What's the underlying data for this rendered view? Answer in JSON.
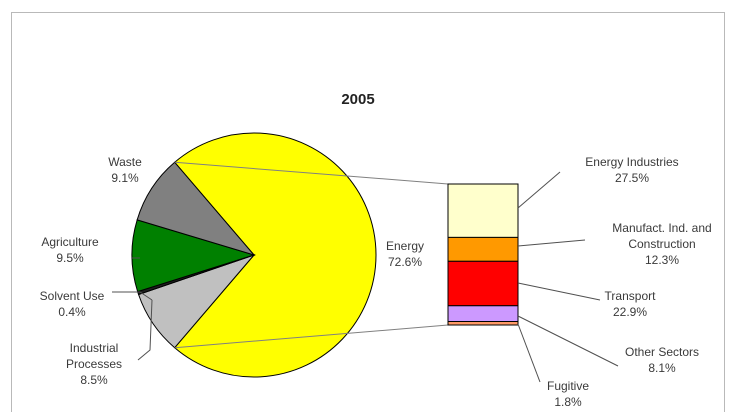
{
  "chart_data": {
    "type": "pie",
    "title": "2005",
    "pie": {
      "slices": [
        {
          "line1": "Energy",
          "line2": "72.6%",
          "value": 72.6,
          "color": "#ffff00"
        },
        {
          "line1": "Industrial",
          "line2": "Processes",
          "line3": "8.5%",
          "value": 8.5,
          "color": "#c0c0c0"
        },
        {
          "line1": "Solvent  Use",
          "line2": "0.4%",
          "value": 0.4,
          "color": "#1e1e1e"
        },
        {
          "line1": "Agriculture",
          "line2": "9.5%",
          "value": 9.5,
          "color": "#008000"
        },
        {
          "line1": "Waste",
          "line2": "9.1%",
          "value": 9.1,
          "color": "#808080"
        }
      ]
    },
    "breakdown_of": "Energy",
    "breakdown": [
      {
        "line1": "Energy Industries",
        "line2": "27.5%",
        "value": 27.5,
        "color": "#ffffcc"
      },
      {
        "line1": "Manufact. Ind. and",
        "line2": "Construction",
        "line3": "12.3%",
        "value": 12.3,
        "color": "#ff9900"
      },
      {
        "line1": "Transport",
        "line2": "22.9%",
        "value": 22.9,
        "color": "#ff0000"
      },
      {
        "line1": "Other Sectors",
        "line2": "8.1%",
        "value": 8.1,
        "color": "#cc99ff"
      },
      {
        "line1": "Fugitive",
        "line2": "1.8%",
        "value": 1.8,
        "color": "#ff9966"
      }
    ]
  }
}
